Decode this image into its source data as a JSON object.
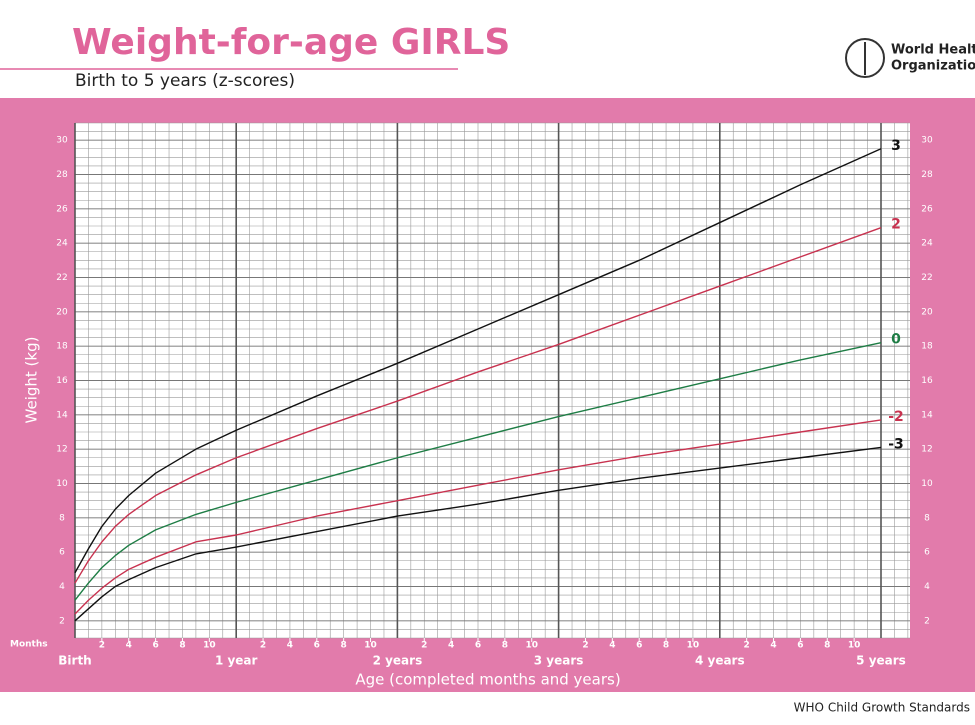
{
  "chart_data": {
    "type": "line",
    "title": "Weight-for-age GIRLS",
    "subtitle": "Birth to 5 years (z-scores)",
    "org_line1": "World Health",
    "org_line2": "Organization",
    "footer": "WHO Child Growth Standards",
    "y_label": "Weight (kg)",
    "x_label": "Age (completed months and years)",
    "months_label": "Months",
    "x": [
      0,
      1,
      2,
      3,
      4,
      6,
      9,
      12,
      18,
      24,
      30,
      36,
      42,
      48,
      54,
      60
    ],
    "series": [
      {
        "name": "3",
        "color": "#111111",
        "values": [
          4.8,
          6.2,
          7.5,
          8.5,
          9.3,
          10.6,
          12.0,
          13.1,
          15.1,
          17.0,
          19.0,
          21.0,
          23.0,
          25.2,
          27.4,
          29.5
        ]
      },
      {
        "name": "2",
        "color": "#c8324f",
        "values": [
          4.2,
          5.5,
          6.6,
          7.5,
          8.2,
          9.3,
          10.5,
          11.5,
          13.2,
          14.8,
          16.5,
          18.1,
          19.8,
          21.5,
          23.2,
          24.9
        ]
      },
      {
        "name": "0",
        "color": "#1e7d45",
        "values": [
          3.2,
          4.2,
          5.1,
          5.8,
          6.4,
          7.3,
          8.2,
          8.9,
          10.2,
          11.5,
          12.7,
          13.9,
          15.0,
          16.1,
          17.2,
          18.2
        ]
      },
      {
        "name": "-2",
        "color": "#c8324f",
        "values": [
          2.4,
          3.2,
          3.9,
          4.5,
          5.0,
          5.7,
          6.6,
          7.0,
          8.1,
          9.0,
          9.9,
          10.8,
          11.6,
          12.3,
          13.0,
          13.7
        ]
      },
      {
        "name": "-3",
        "color": "#111111",
        "values": [
          2.0,
          2.7,
          3.4,
          4.0,
          4.4,
          5.1,
          5.9,
          6.3,
          7.2,
          8.1,
          8.8,
          9.6,
          10.3,
          10.9,
          11.5,
          12.1
        ]
      }
    ],
    "xlim": [
      0,
      60
    ],
    "ylim": [
      1,
      31
    ],
    "yticks": [
      2,
      4,
      6,
      8,
      10,
      12,
      14,
      16,
      18,
      20,
      22,
      24,
      26,
      28,
      30
    ],
    "xticks": [
      {
        "value": 0,
        "label": "Birth"
      },
      {
        "value": 12,
        "label": "1 year"
      },
      {
        "value": 24,
        "label": "2 years"
      },
      {
        "value": 36,
        "label": "3 years"
      },
      {
        "value": 48,
        "label": "4 years"
      },
      {
        "value": 60,
        "label": "5 years"
      }
    ],
    "month_ticks": [
      {
        "value": 2,
        "label": "2"
      },
      {
        "value": 4,
        "label": "4"
      },
      {
        "value": 6,
        "label": "6"
      },
      {
        "value": 8,
        "label": "8"
      },
      {
        "value": 10,
        "label": "10"
      },
      {
        "value": 14,
        "label": "2"
      },
      {
        "value": 16,
        "label": "4"
      },
      {
        "value": 18,
        "label": "6"
      },
      {
        "value": 20,
        "label": "8"
      },
      {
        "value": 22,
        "label": "10"
      },
      {
        "value": 26,
        "label": "2"
      },
      {
        "value": 28,
        "label": "4"
      },
      {
        "value": 30,
        "label": "6"
      },
      {
        "value": 32,
        "label": "8"
      },
      {
        "value": 34,
        "label": "10"
      },
      {
        "value": 38,
        "label": "2"
      },
      {
        "value": 40,
        "label": "4"
      },
      {
        "value": 42,
        "label": "6"
      },
      {
        "value": 44,
        "label": "8"
      },
      {
        "value": 46,
        "label": "10"
      },
      {
        "value": 50,
        "label": "2"
      },
      {
        "value": 52,
        "label": "4"
      },
      {
        "value": 54,
        "label": "6"
      },
      {
        "value": 56,
        "label": "8"
      },
      {
        "value": 58,
        "label": "10"
      }
    ],
    "grid": true
  }
}
